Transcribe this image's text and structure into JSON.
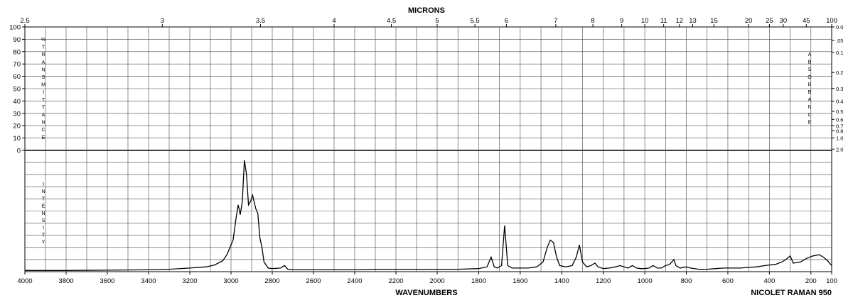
{
  "chart_data": {
    "type": "line",
    "top_axis_title": "MICRONS",
    "bottom_axis_title": "WAVENUMBERS",
    "instrument": "NICOLET RAMAN 950",
    "x_range": [
      4000,
      100
    ],
    "micron_ticks": [
      "2.5",
      "3",
      "3.5",
      "4",
      "4.5",
      "5",
      "5.5",
      "6",
      "7",
      "8",
      "9",
      "10",
      "11",
      "12",
      "13",
      "15",
      "20",
      "25",
      "30",
      "45",
      "100"
    ],
    "wavenumber_ticks": [
      "4000",
      "3800",
      "3600",
      "3400",
      "3200",
      "3000",
      "2800",
      "2600",
      "2400",
      "2200",
      "2000",
      "1800",
      "1600",
      "1400",
      "1200",
      "1000",
      "800",
      "600",
      "400",
      "200",
      "100"
    ],
    "transmittance_ticks": [
      "100",
      "90",
      "80",
      "70",
      "60",
      "50",
      "40",
      "30",
      "20",
      "10",
      "0"
    ],
    "absorbance_ticks": [
      "0.0",
      ".05",
      "0.1",
      "0.2",
      "0.3",
      "0.4",
      "0.5",
      "0.6",
      "0.7",
      "0.8",
      "1.0",
      "2.0"
    ],
    "left_label_upper": [
      "%",
      "T",
      "R",
      "A",
      "N",
      "S",
      "M",
      "I",
      "T",
      "T",
      "A",
      "N",
      "C",
      "E"
    ],
    "right_label_upper": [
      "A",
      "B",
      "S",
      "O",
      "R",
      "B",
      "A",
      "N",
      "C",
      "E"
    ],
    "left_label_lower": [
      "I",
      "N",
      "T",
      "E",
      "N",
      "S",
      "I",
      "T",
      "Y"
    ],
    "intensity_range": [
      0,
      100
    ],
    "grid": true,
    "series": [
      {
        "points": [
          [
            4000,
            1
          ],
          [
            3800,
            1
          ],
          [
            3600,
            1.2
          ],
          [
            3400,
            1.5
          ],
          [
            3300,
            2
          ],
          [
            3200,
            3
          ],
          [
            3120,
            4
          ],
          [
            3080,
            5.5
          ],
          [
            3040,
            9
          ],
          [
            3020,
            14
          ],
          [
            3005,
            20
          ],
          [
            2990,
            26
          ],
          [
            2975,
            45
          ],
          [
            2965,
            55
          ],
          [
            2955,
            47
          ],
          [
            2945,
            58
          ],
          [
            2935,
            92
          ],
          [
            2925,
            80
          ],
          [
            2915,
            55
          ],
          [
            2905,
            58
          ],
          [
            2895,
            63
          ],
          [
            2880,
            52
          ],
          [
            2870,
            48
          ],
          [
            2860,
            28
          ],
          [
            2850,
            20
          ],
          [
            2840,
            8
          ],
          [
            2820,
            3
          ],
          [
            2800,
            2.5
          ],
          [
            2760,
            3
          ],
          [
            2740,
            5
          ],
          [
            2725,
            2
          ],
          [
            2700,
            1.5
          ],
          [
            2600,
            1.5
          ],
          [
            2500,
            1.5
          ],
          [
            2400,
            1.5
          ],
          [
            2300,
            2
          ],
          [
            2200,
            2
          ],
          [
            2100,
            2
          ],
          [
            2000,
            2
          ],
          [
            1900,
            2
          ],
          [
            1800,
            2.5
          ],
          [
            1760,
            4
          ],
          [
            1740,
            12
          ],
          [
            1725,
            4
          ],
          [
            1710,
            3
          ],
          [
            1690,
            5
          ],
          [
            1675,
            38
          ],
          [
            1660,
            5
          ],
          [
            1640,
            3
          ],
          [
            1600,
            3
          ],
          [
            1560,
            3
          ],
          [
            1520,
            4
          ],
          [
            1490,
            8
          ],
          [
            1470,
            20
          ],
          [
            1455,
            26
          ],
          [
            1440,
            24
          ],
          [
            1425,
            12
          ],
          [
            1410,
            5
          ],
          [
            1380,
            4
          ],
          [
            1350,
            5
          ],
          [
            1330,
            12
          ],
          [
            1315,
            22
          ],
          [
            1300,
            8
          ],
          [
            1280,
            4
          ],
          [
            1260,
            5
          ],
          [
            1240,
            7
          ],
          [
            1225,
            4
          ],
          [
            1200,
            2.5
          ],
          [
            1170,
            3
          ],
          [
            1140,
            4
          ],
          [
            1120,
            5
          ],
          [
            1100,
            4
          ],
          [
            1080,
            3
          ],
          [
            1060,
            5
          ],
          [
            1040,
            3
          ],
          [
            1020,
            2.5
          ],
          [
            1000,
            2.5
          ],
          [
            980,
            3
          ],
          [
            960,
            5
          ],
          [
            940,
            3
          ],
          [
            920,
            3
          ],
          [
            900,
            5
          ],
          [
            880,
            6
          ],
          [
            860,
            10
          ],
          [
            850,
            5
          ],
          [
            830,
            3
          ],
          [
            800,
            4
          ],
          [
            780,
            3
          ],
          [
            740,
            2
          ],
          [
            700,
            2
          ],
          [
            660,
            2.5
          ],
          [
            620,
            3
          ],
          [
            580,
            3
          ],
          [
            540,
            3
          ],
          [
            500,
            3.5
          ],
          [
            460,
            4
          ],
          [
            420,
            5
          ],
          [
            400,
            5.5
          ],
          [
            370,
            6
          ],
          [
            340,
            8
          ],
          [
            320,
            10
          ],
          [
            300,
            13
          ],
          [
            285,
            7
          ],
          [
            250,
            8
          ],
          [
            220,
            11
          ],
          [
            190,
            13
          ],
          [
            160,
            14
          ],
          [
            140,
            12
          ],
          [
            120,
            9
          ],
          [
            100,
            5
          ]
        ]
      }
    ]
  }
}
